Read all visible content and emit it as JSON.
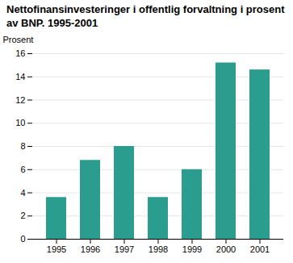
{
  "chart_data": {
    "type": "bar",
    "title": "Nettofinansinvesteringer i offentlig forvaltning i prosent av BNP. 1995-2001",
    "y_label": "Prosent",
    "categories": [
      "1995",
      "1996",
      "1997",
      "1998",
      "1999",
      "2000",
      "2001"
    ],
    "values": [
      3.6,
      6.8,
      8.0,
      3.6,
      6.0,
      15.2,
      14.6
    ],
    "color": "#2a9d8f",
    "ylim": [
      0,
      16
    ],
    "yticks": [
      0,
      2,
      4,
      6,
      8,
      10,
      12,
      14,
      16
    ],
    "grid": true
  }
}
